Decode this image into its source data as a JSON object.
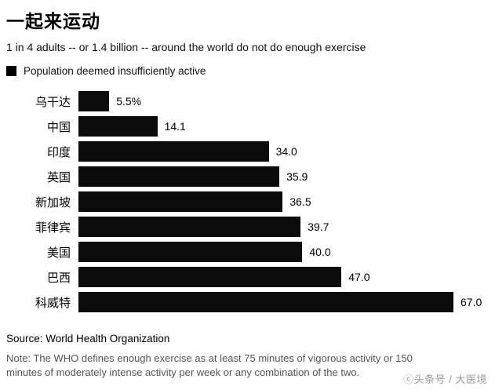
{
  "chart_data": {
    "type": "bar",
    "orientation": "horizontal",
    "title": "一起来运动",
    "subtitle": "1 in 4 adults -- or 1.4 billion -- around the world do not do enough exercise",
    "legend": "Population deemed insufficiently active",
    "categories": [
      "乌干达",
      "中国",
      "印度",
      "英国",
      "新加坡",
      "菲律宾",
      "美国",
      "巴西",
      "科威特"
    ],
    "values": [
      5.5,
      14.1,
      34.0,
      35.9,
      36.5,
      39.7,
      40.0,
      47.0,
      67.0
    ],
    "value_labels": [
      "5.5%",
      "14.1",
      "34.0",
      "35.9",
      "36.5",
      "39.7",
      "40.0",
      "47.0",
      "67.0"
    ],
    "xlabel": "",
    "ylabel": "",
    "xlim": [
      0,
      67
    ],
    "grid": false,
    "bar_color": "#0b0b0b",
    "legend_position": "top-left"
  },
  "footer": {
    "source": "Source: World Health Organization",
    "note": "Note: The WHO defines enough exercise as at least 75 minutes of vigorous activity or 150 minutes of moderately intense activity per week or any combination of the two.",
    "watermark": "ⓒ头条号 / 大医境"
  }
}
